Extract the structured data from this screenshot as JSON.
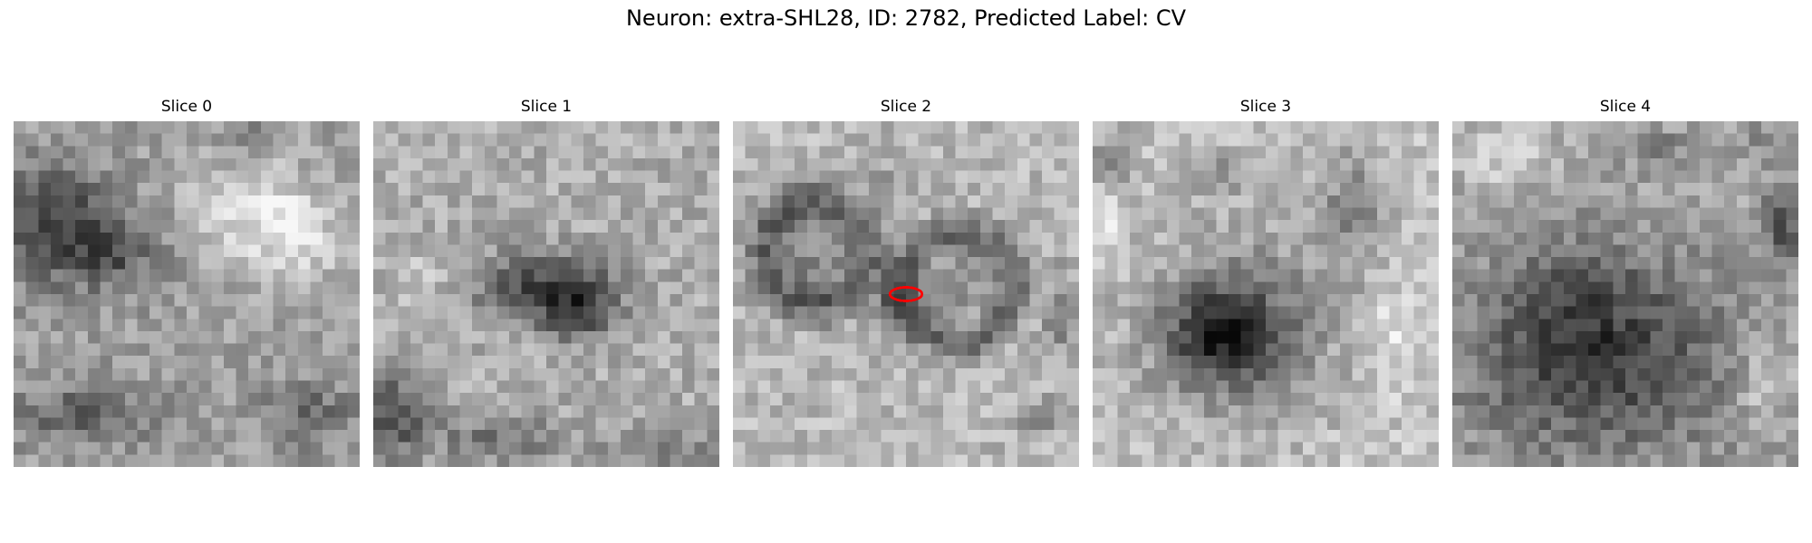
{
  "figure": {
    "title": "Neuron: extra-SHL28, ID: 2782, Predicted Label: CV"
  },
  "panels": [
    {
      "title": "Slice 0",
      "description": "Noisy grayscale microscopy patch with dark region on the left edge and lighter region on the right"
    },
    {
      "title": "Slice 1",
      "description": "Noisy grayscale microscopy patch with dark horizontal blob in the center"
    },
    {
      "title": "Slice 2",
      "description": "Grayscale microscopy patch with two dark rounded cell outlines and a red marker ellipse at the center",
      "marker_color": "#ff0000"
    },
    {
      "title": "Slice 3",
      "description": "Grayscale microscopy patch with one large dark round cell body in the lower left"
    },
    {
      "title": "Slice 4",
      "description": "Grayscale microscopy patch with a large dark textured region filling the lower portion"
    }
  ]
}
